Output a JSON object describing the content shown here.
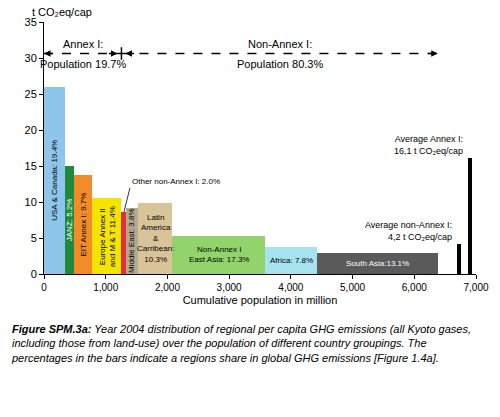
{
  "chart_data": {
    "type": "bar",
    "y_label": "t CO₂eq/cap",
    "x_label": "Cumulative population in million",
    "xlim": [
      0,
      7000
    ],
    "xticks": [
      0,
      {
        "value": 1000,
        "label": "1,000"
      },
      {
        "value": 2000,
        "label": "2,000"
      },
      {
        "value": 3000,
        "label": "3,000"
      },
      {
        "value": 4000,
        "label": "4,000"
      },
      {
        "value": 5000,
        "label": "5,000"
      },
      {
        "value": 6000,
        "label": "6,000"
      },
      {
        "value": 7000,
        "label": "7,000"
      }
    ],
    "ylim": [
      0,
      35
    ],
    "yticks": [
      0,
      5,
      10,
      15,
      20,
      25,
      30,
      35
    ],
    "grid": false,
    "series": [
      {
        "annotation": "Annex I:\nPopulation 19.7%",
        "categories": [
          "USA & Canada: 19.4%",
          "JANZ: 5.2%",
          "EIT Annex I: 9.7%",
          "Europe Annex II\nand M & T 11.4%"
        ],
        "widths": [
          335,
          150,
          300,
          470
        ],
        "values": [
          26.0,
          15.0,
          13.8,
          10.5
        ],
        "colors": [
          "#8ec5ea",
          "#1f8a3c",
          "#f28c28",
          "#f5e400"
        ]
      },
      {
        "annotation": "Non-Annex I:\nPopulation 80.3%",
        "categories": [
          "Other non-Annex I: 2.0%",
          "Middle East: 3.8%",
          "Latin\nAmerica\n&\nCarribean:\n10.3%",
          "Non-Annex I\nEast Asia: 17.3%",
          "Africa: 7.8%",
          "South Asia:13.1%"
        ],
        "widths": [
          80,
          185,
          560,
          1500,
          850,
          1950
        ],
        "values": [
          8.6,
          9.2,
          9.8,
          5.3,
          3.8,
          2.9
        ],
        "colors": [
          "#e0303a",
          "#b5a88f",
          "#d9c49a",
          "#93d36c",
          "#a7e3ef",
          "#5a5a5a"
        ]
      },
      {
        "categories": [
          "Average non-Annex I:\n4,2 t CO₂eq/cap",
          "Average Annex I:\n16,1 t CO₂eq/cap"
        ],
        "x": [
          6700,
          6870
        ],
        "widths": [
          60,
          60
        ],
        "values": [
          4.2,
          16.1
        ],
        "color": "#000000"
      }
    ]
  },
  "caption": {
    "label": "Figure SPM.3a:",
    "text": "Year 2004 distribution of regional per capita GHG emissions (all Kyoto gases, including those from land-use) over the population of different country groupings. The percentages in the bars indicate a regions share in global GHG emissions [Figure 1.4a]."
  }
}
